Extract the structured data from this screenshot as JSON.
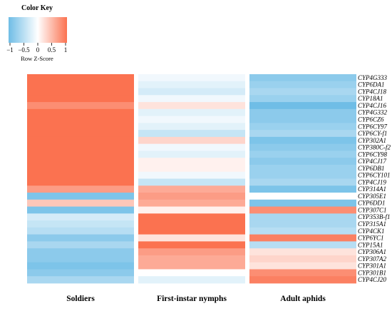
{
  "colors": {
    "low": "#6fbde6",
    "mid": "#ffffff",
    "high": "#fb7250"
  },
  "color_key": {
    "title": "Color Key",
    "ticks": [
      "−1",
      "−0.5",
      "0",
      "0.5",
      "1"
    ],
    "subtitle": "Row Z-Score"
  },
  "chart_data": {
    "type": "heatmap",
    "title": "",
    "columns": [
      "Soldiers",
      "First-instar nymphs",
      "Adult aphids"
    ],
    "rows": [
      "CYP4G333",
      "CYP6DA1",
      "CYP4CJ18",
      "CYP18A1",
      "CYP4CJ16",
      "CYP4G332",
      "CYP6CZ6",
      "CYP6CY97",
      "CYP6CY-f1",
      "CYP302A1",
      "CYP380C-f2",
      "CYP6CY98",
      "CYP4CJ17",
      "CYP6DB1",
      "CYP6CY101",
      "CYP4CJ19",
      "CYP314A1",
      "CYP305E1",
      "CYP6DD1",
      "CYP307C1",
      "CYP353B-f1",
      "CYP315A1",
      "CYP4CK1",
      "CYP6YC1",
      "CYP15A1",
      "CYP306A1",
      "CYP307A2",
      "CYP301A1",
      "CYP301B1",
      "CYP4CJ20"
    ],
    "zscore_range": [
      -1,
      1
    ],
    "values": [
      [
        1.0,
        -0.1,
        -0.8
      ],
      [
        1.0,
        -0.2,
        -0.7
      ],
      [
        1.0,
        -0.3,
        -0.6
      ],
      [
        1.0,
        -0.1,
        -0.7
      ],
      [
        0.8,
        0.2,
        -1.0
      ],
      [
        1.0,
        -0.2,
        -0.8
      ],
      [
        1.0,
        -0.1,
        -0.8
      ],
      [
        1.0,
        -0.2,
        -0.7
      ],
      [
        1.0,
        -0.4,
        -0.6
      ],
      [
        1.0,
        0.3,
        -0.9
      ],
      [
        1.0,
        -0.1,
        -0.8
      ],
      [
        1.0,
        -0.2,
        -0.7
      ],
      [
        1.0,
        0.1,
        -0.8
      ],
      [
        1.0,
        0.1,
        -0.7
      ],
      [
        1.0,
        -0.1,
        -0.7
      ],
      [
        1.0,
        -0.4,
        -0.6
      ],
      [
        0.7,
        0.6,
        -0.9
      ],
      [
        -0.9,
        0.7,
        0.0
      ],
      [
        0.4,
        0.6,
        -0.9
      ],
      [
        -0.9,
        0.1,
        0.8
      ],
      [
        -0.3,
        1.0,
        -0.6
      ],
      [
        -0.4,
        1.0,
        -0.6
      ],
      [
        -0.5,
        1.0,
        -0.5
      ],
      [
        -0.8,
        0.2,
        0.9
      ],
      [
        -0.6,
        1.0,
        -0.5
      ],
      [
        -0.8,
        0.7,
        0.2
      ],
      [
        -0.8,
        0.6,
        0.3
      ],
      [
        -0.9,
        0.6,
        0.2
      ],
      [
        -0.8,
        0.0,
        0.8
      ],
      [
        -0.6,
        -0.2,
        0.9
      ]
    ]
  }
}
